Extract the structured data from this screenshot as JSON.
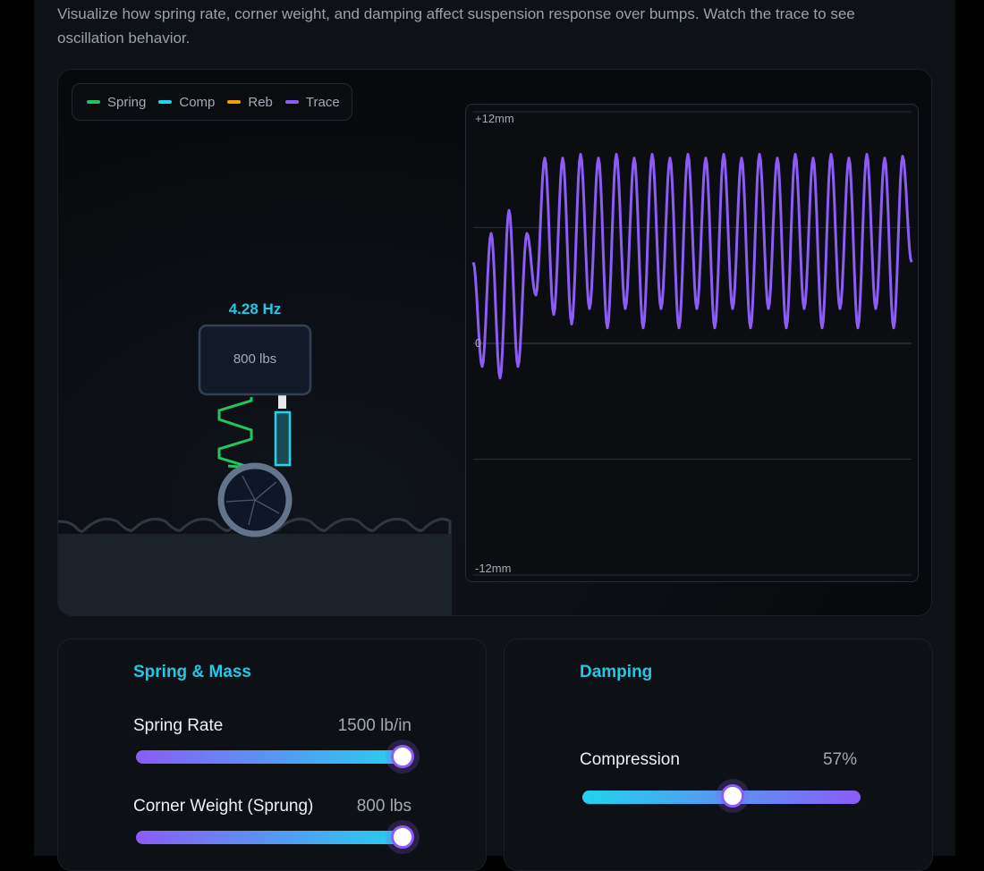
{
  "description": "Visualize how spring rate, corner weight, and damping affect suspension response over bumps. Watch the trace to see oscillation behavior.",
  "legend": [
    {
      "label": "Spring",
      "color": "#22c55e"
    },
    {
      "label": "Comp",
      "color": "#22d3ee"
    },
    {
      "label": "Reb",
      "color": "#f59e0b"
    },
    {
      "label": "Trace",
      "color": "#8b5cf6"
    }
  ],
  "scene": {
    "frequency": "4.28 Hz",
    "mass_label": "800 lbs"
  },
  "chart_data": {
    "type": "line",
    "y_tick_labels": [
      "+12mm",
      "0",
      "-12mm"
    ],
    "ylim": [
      -12,
      12
    ],
    "grid": true,
    "series": [
      {
        "color": "#8b5cf6",
        "extrema_mm": [
          4.2,
          -1.2,
          5.7,
          -1.8,
          6.9,
          -1.2,
          5.7,
          2.5,
          9.6,
          1.5,
          9.6,
          1.0,
          9.8,
          1.8,
          9.6,
          0.8,
          9.8,
          1.8,
          9.6,
          0.8,
          9.8,
          1.8,
          9.6,
          0.8,
          9.8,
          1.8,
          9.6,
          0.8,
          9.8,
          1.8,
          9.6,
          0.8,
          9.8,
          1.8,
          9.6,
          0.8,
          9.8,
          1.8,
          9.6,
          0.8,
          9.8,
          1.8,
          9.6,
          0.8,
          9.8,
          1.8,
          9.6,
          0.8,
          9.7,
          4.2
        ]
      }
    ]
  },
  "spring_mass": {
    "title": "Spring & Mass",
    "spring_rate": {
      "label": "Spring Rate",
      "value": "1500 lb/in",
      "fraction": 1.0
    },
    "corner_weight": {
      "label": "Corner Weight (Sprung)",
      "value": "800 lbs",
      "fraction": 1.0
    }
  },
  "damping": {
    "title": "Damping",
    "compression": {
      "label": "Compression",
      "value": "57%",
      "fraction": 0.57
    }
  }
}
